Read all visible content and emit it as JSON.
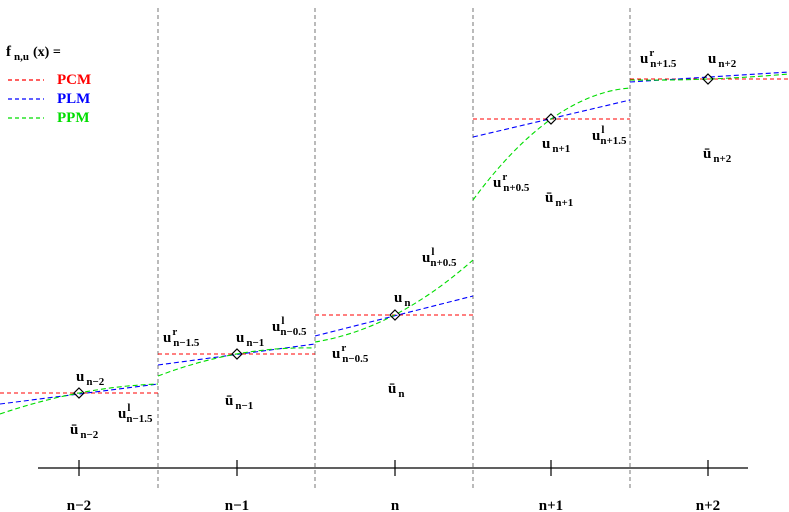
{
  "legend": {
    "title_main": "f",
    "title_sub": "n,u",
    "title_tail": "(x) =",
    "items": [
      {
        "label": "PCM",
        "color": "#ff0000"
      },
      {
        "label": "PLM",
        "color": "#0000ff"
      },
      {
        "label": "PPM",
        "color": "#00dd00"
      }
    ]
  },
  "axis_ticks": [
    "n−2",
    "n−1",
    "n",
    "n+1",
    "n+2"
  ],
  "point_labels": [
    {
      "main": "u",
      "sub": "n−2"
    },
    {
      "main": "u",
      "sub": "n−1"
    },
    {
      "main": "u",
      "sub": "n"
    },
    {
      "main": "u",
      "sub": "n+1"
    },
    {
      "main": "u",
      "sub": "n+2"
    }
  ],
  "average_labels": [
    {
      "main": "ū",
      "sub": "n−2"
    },
    {
      "main": "ū",
      "sub": "n−1"
    },
    {
      "main": "ū",
      "sub": "n"
    },
    {
      "main": "ū",
      "sub": "n+1"
    },
    {
      "main": "ū",
      "sub": "n+2"
    }
  ],
  "interface_labels": [
    {
      "main": "u",
      "sup": "l",
      "sub": "n−1.5"
    },
    {
      "main": "u",
      "sup": "r",
      "sub": "n−1.5"
    },
    {
      "main": "u",
      "sup": "l",
      "sub": "n−0.5"
    },
    {
      "main": "u",
      "sup": "r",
      "sub": "n−0.5"
    },
    {
      "main": "u",
      "sup": "l",
      "sub": "n+0.5"
    },
    {
      "main": "u",
      "sup": "r",
      "sub": "n+0.5"
    },
    {
      "main": "u",
      "sup": "l",
      "sub": "n+1.5"
    },
    {
      "main": "u",
      "sup": "r",
      "sub": "n+1.5"
    }
  ],
  "cells": {
    "centers": [
      79,
      237,
      395,
      551,
      708
    ],
    "points": [
      393,
      354,
      315,
      119,
      79
    ],
    "pcm_levels": [
      393,
      354,
      315,
      119,
      79
    ],
    "plm": [
      [
        404,
        384
      ],
      [
        365,
        344
      ],
      [
        336,
        296
      ],
      [
        137,
        100
      ],
      [
        82,
        72
      ]
    ],
    "ppm": [
      [
        414,
        384
      ],
      [
        376,
        348
      ],
      [
        342,
        260
      ],
      [
        200,
        88
      ],
      [
        80,
        74
      ]
    ]
  }
}
